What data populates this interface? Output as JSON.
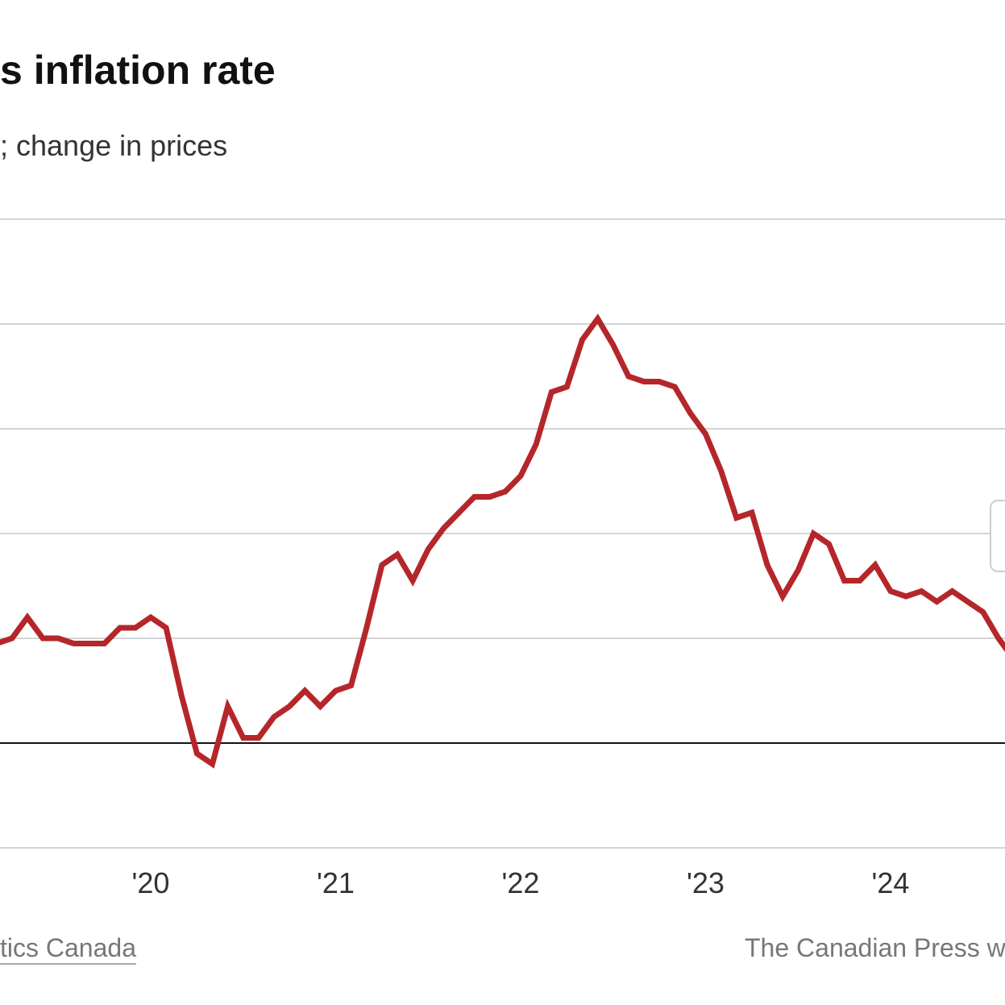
{
  "title": "s inflation rate",
  "subtitle": "; change in prices",
  "source": "tics Canada",
  "credit": "The Canadian Press w",
  "chart_data": {
    "type": "line",
    "title": "s inflation rate",
    "subtitle": "; change in prices",
    "ylabel": "",
    "xlabel": "",
    "ylim": [
      -2,
      10
    ],
    "yticks": [
      -2,
      0,
      2,
      4,
      6,
      8,
      10
    ],
    "grid": true,
    "line_color": "#b5262a",
    "x_tick_labels": [
      "'20",
      "'21",
      "'22",
      "'23",
      "'24"
    ],
    "x_tick_dates": [
      "2020-01",
      "2021-01",
      "2022-01",
      "2023-01",
      "2024-01"
    ],
    "series": [
      {
        "x": [
          "2019-03",
          "2019-04",
          "2019-05",
          "2019-06",
          "2019-07",
          "2019-08",
          "2019-09",
          "2019-10",
          "2019-11",
          "2019-12",
          "2020-01",
          "2020-02",
          "2020-03",
          "2020-04",
          "2020-05",
          "2020-06",
          "2020-07",
          "2020-08",
          "2020-09",
          "2020-10",
          "2020-11",
          "2020-12",
          "2021-01",
          "2021-02",
          "2021-03",
          "2021-04",
          "2021-05",
          "2021-06",
          "2021-07",
          "2021-08",
          "2021-09",
          "2021-10",
          "2021-11",
          "2021-12",
          "2022-01",
          "2022-02",
          "2022-03",
          "2022-04",
          "2022-05",
          "2022-06",
          "2022-07",
          "2022-08",
          "2022-09",
          "2022-10",
          "2022-11",
          "2022-12",
          "2023-01",
          "2023-02",
          "2023-03",
          "2023-04",
          "2023-05",
          "2023-06",
          "2023-07",
          "2023-08",
          "2023-09",
          "2023-10",
          "2023-11",
          "2023-12",
          "2024-01",
          "2024-02",
          "2024-03",
          "2024-04",
          "2024-05",
          "2024-06",
          "2024-07",
          "2024-08",
          "2024-09"
        ],
        "values": [
          1.9,
          2.0,
          2.4,
          2.0,
          2.0,
          1.9,
          1.9,
          1.9,
          2.2,
          2.2,
          2.4,
          2.2,
          0.9,
          -0.2,
          -0.4,
          0.7,
          0.1,
          0.1,
          0.5,
          0.7,
          1.0,
          0.7,
          1.0,
          1.1,
          2.2,
          3.4,
          3.6,
          3.1,
          3.7,
          4.1,
          4.4,
          4.7,
          4.7,
          4.8,
          5.1,
          5.7,
          6.7,
          6.8,
          7.7,
          8.1,
          7.6,
          7.0,
          6.9,
          6.9,
          6.8,
          6.3,
          5.9,
          5.2,
          4.3,
          4.4,
          3.4,
          2.8,
          3.3,
          4.0,
          3.8,
          3.1,
          3.1,
          3.4,
          2.9,
          2.8,
          2.9,
          2.7,
          2.9,
          2.7,
          2.5,
          2.0,
          1.6
        ]
      }
    ]
  }
}
